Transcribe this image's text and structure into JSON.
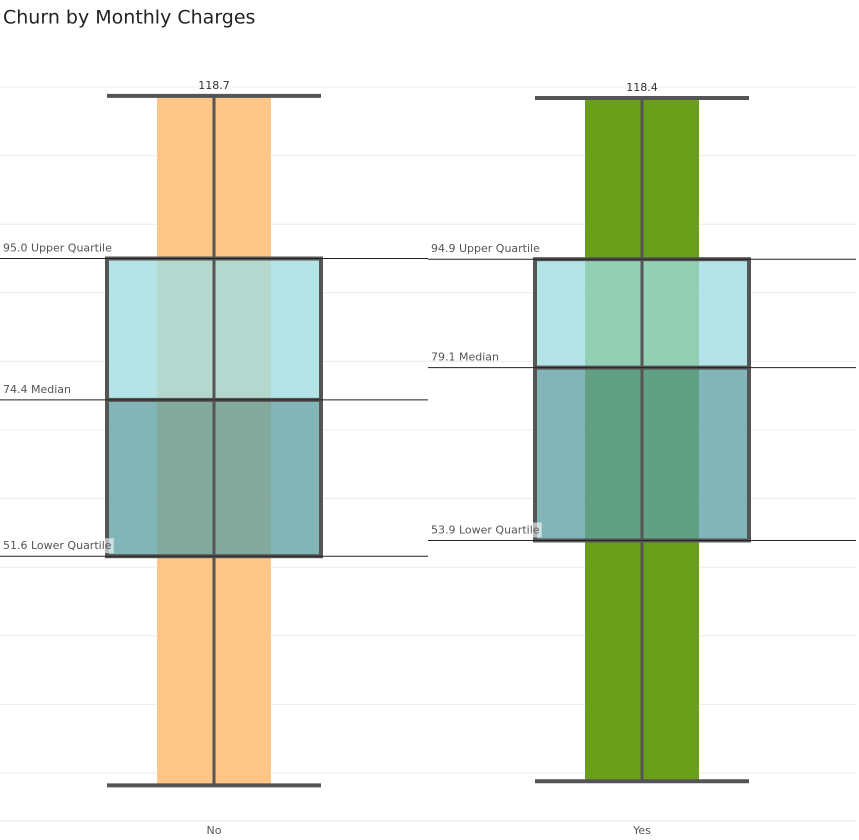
{
  "chart_data": {
    "type": "box",
    "title": "Churn by Monthly Charges",
    "categories": [
      "No",
      "Yes"
    ],
    "colors": [
      "#ffc685",
      "#6a9f1a"
    ],
    "min": [
      18.2,
      18.8
    ],
    "q1": [
      51.6,
      53.9
    ],
    "median": [
      74.4,
      79.1
    ],
    "q3": [
      95.0,
      94.9
    ],
    "max": [
      118.7,
      118.4
    ],
    "q1_labels": [
      "51.6 Lower Quartile",
      "53.9 Lower Quartile"
    ],
    "median_labels": [
      "74.4 Median",
      "79.1 Median"
    ],
    "q3_labels": [
      "95.0 Upper Quartile",
      "94.9 Upper Quartile"
    ],
    "ylim": [
      13,
      127
    ],
    "yticks": [
      20,
      30,
      40,
      50,
      60,
      70,
      80,
      90,
      100,
      110,
      120
    ],
    "grid": true
  }
}
